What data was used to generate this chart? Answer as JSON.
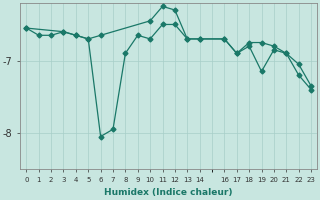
{
  "xlabel": "Humidex (Indice chaleur)",
  "bg_color": "#c8e6e0",
  "grid_color": "#a8cec8",
  "line_color": "#1a7868",
  "xlim": [
    -0.5,
    23.5
  ],
  "ylim": [
    -8.5,
    -6.2
  ],
  "yticks": [
    -8,
    -7
  ],
  "xticks": [
    0,
    1,
    2,
    3,
    4,
    5,
    6,
    7,
    8,
    9,
    10,
    11,
    12,
    13,
    14,
    16,
    17,
    18,
    19,
    20,
    21,
    22,
    23
  ],
  "series1_x": [
    0,
    1,
    2,
    3,
    4,
    5,
    6,
    7,
    8,
    9,
    10,
    11,
    12,
    13,
    14,
    16,
    17,
    18,
    19,
    20,
    21,
    22,
    23
  ],
  "series1_y": [
    -6.55,
    -6.65,
    -6.65,
    -6.6,
    -6.65,
    -6.7,
    -8.05,
    -7.95,
    -6.9,
    -6.65,
    -6.7,
    -6.5,
    -6.5,
    -6.7,
    -6.7,
    -6.7,
    -6.9,
    -6.75,
    -6.75,
    -6.8,
    -6.9,
    -7.05,
    -7.35
  ],
  "series2_x": [
    0,
    3,
    4,
    5,
    6,
    10,
    11,
    12,
    13,
    14,
    16,
    17,
    18,
    19,
    20,
    21,
    22,
    23
  ],
  "series2_y": [
    -6.55,
    -6.6,
    -6.65,
    -6.7,
    -6.65,
    -6.45,
    -6.25,
    -6.3,
    -6.7,
    -6.7,
    -6.7,
    -6.9,
    -6.8,
    -7.15,
    -6.85,
    -6.9,
    -7.2,
    -7.4
  ],
  "marker_size": 2.5,
  "linewidth": 0.9
}
